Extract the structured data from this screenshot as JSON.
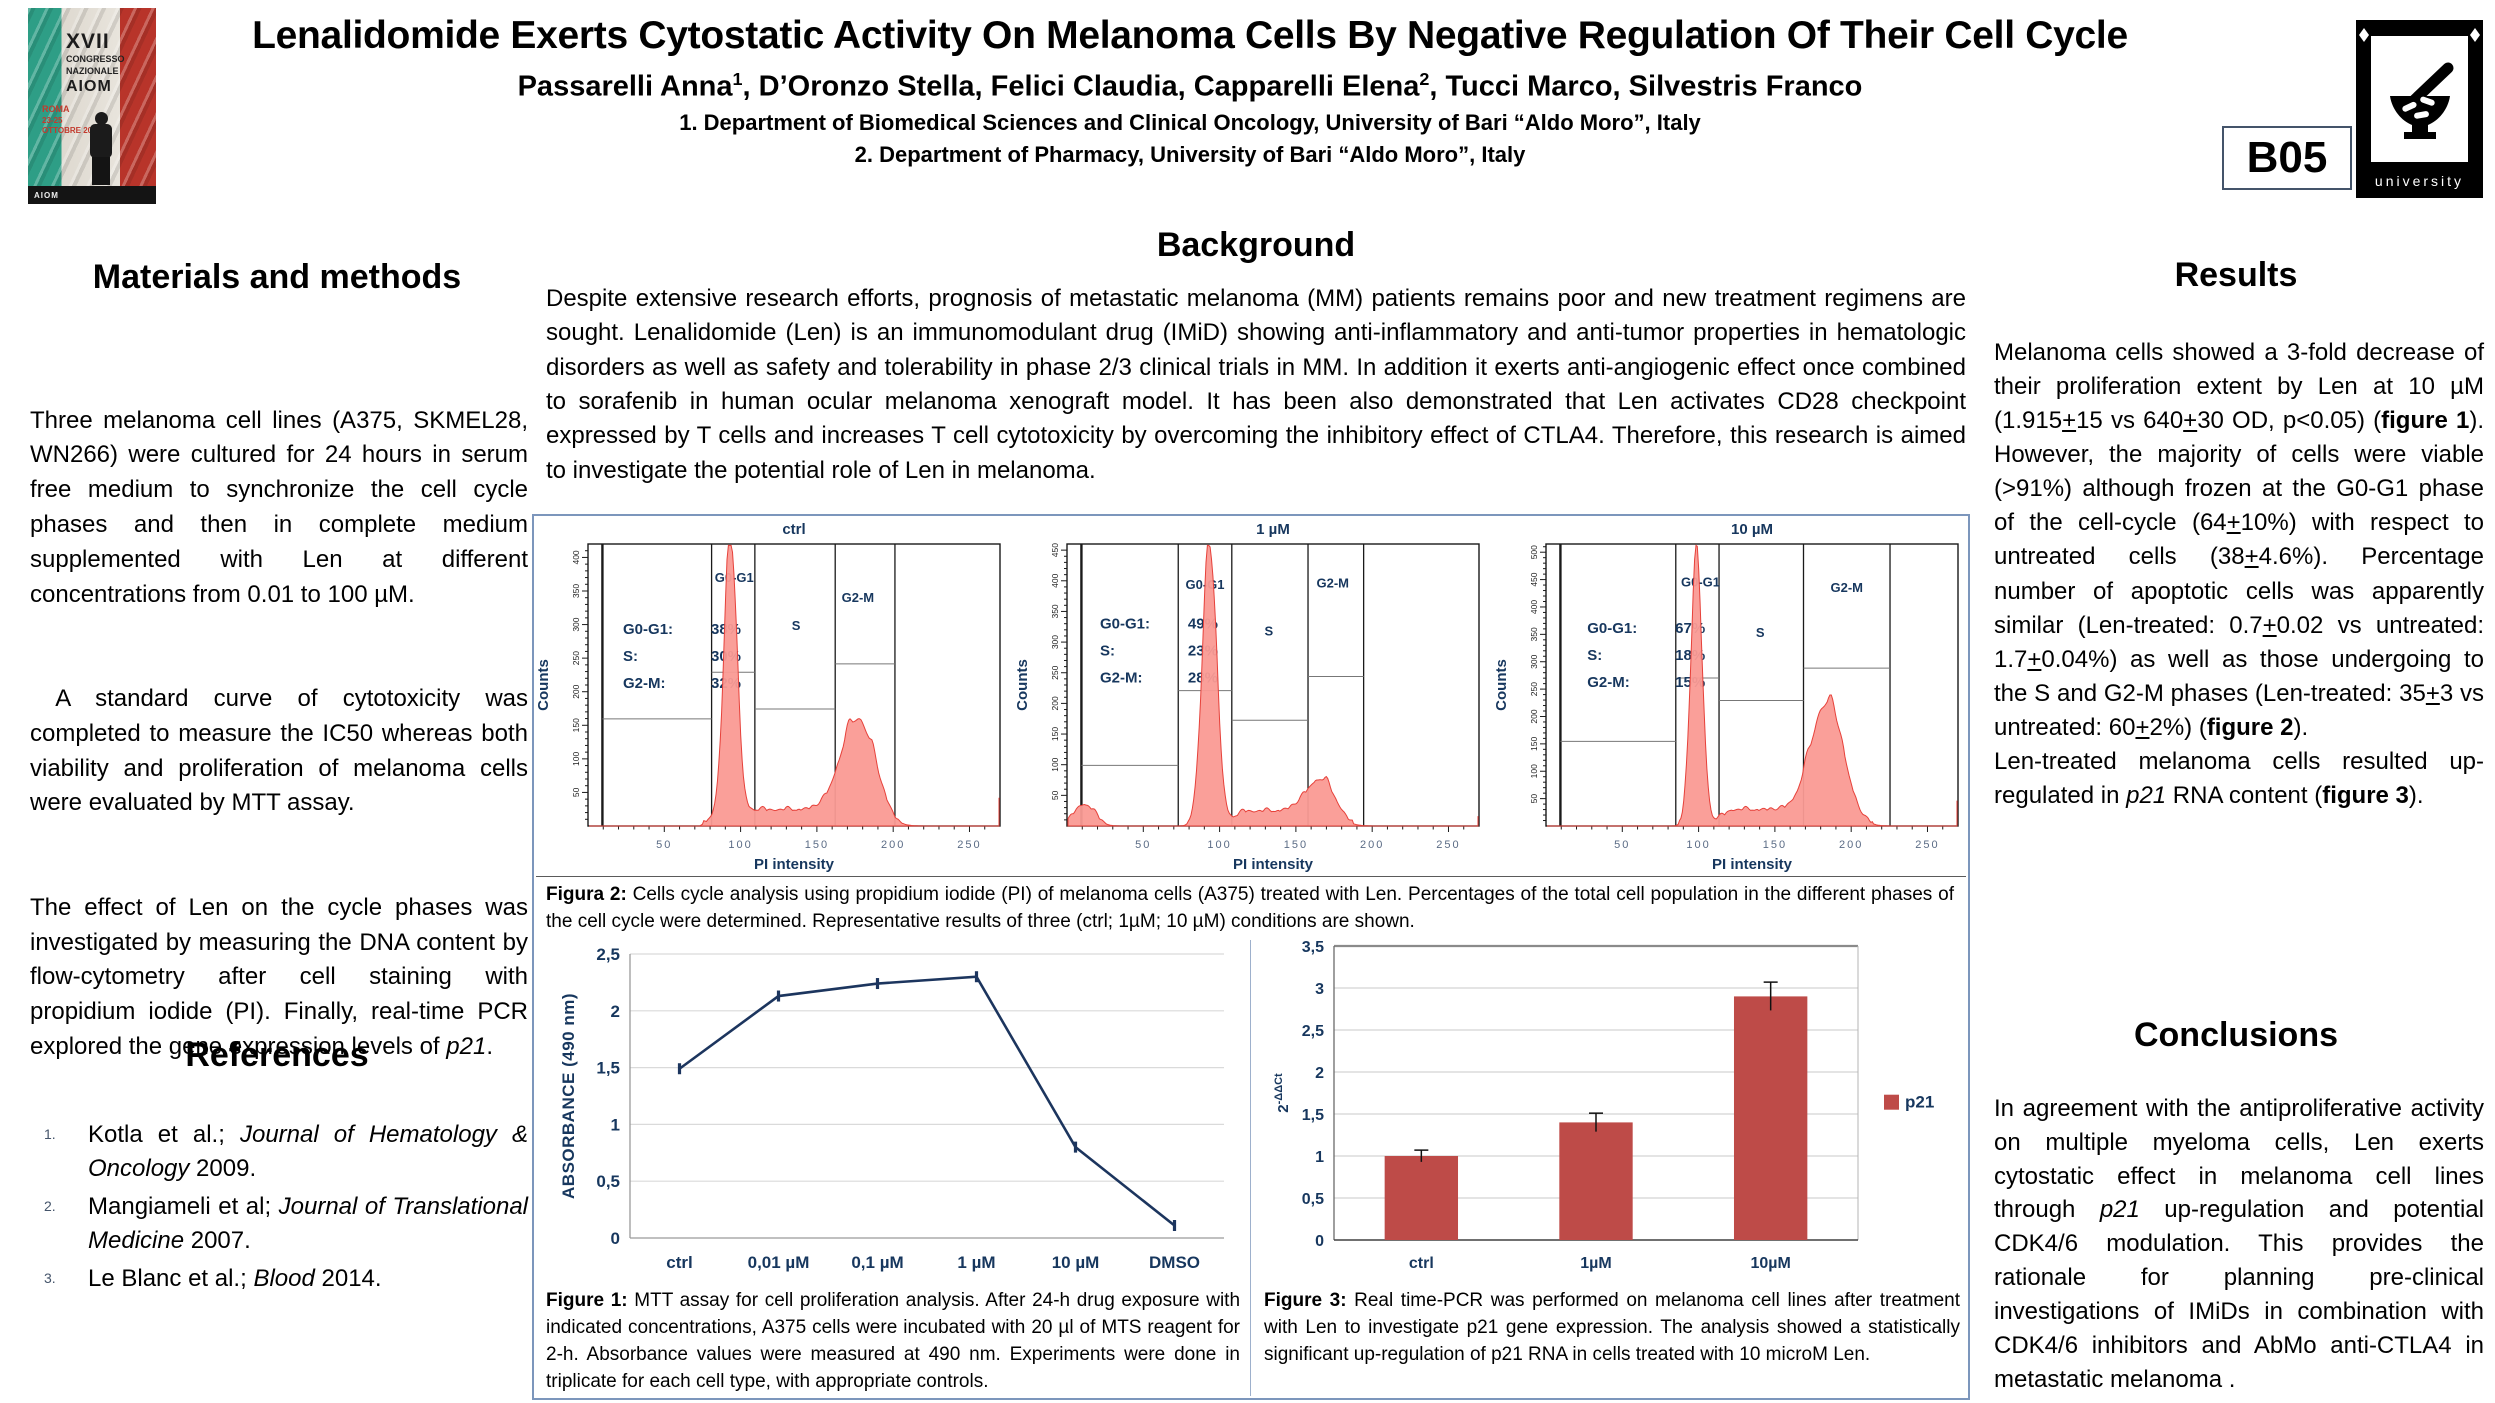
{
  "header": {
    "title": "Lenalidomide Exerts Cytostatic Activity On Melanoma Cells By Negative Regulation Of Their Cell Cycle",
    "authors_segments": [
      {
        "t": "Passarelli Anna"
      },
      {
        "t": "1",
        "s": 1
      },
      {
        "t": ", D’Oronzo Stella, Felici Claudia, Capparelli Elena"
      },
      {
        "t": "2",
        "s": 1
      },
      {
        "t": ", Tucci Marco, Silvestris Franco"
      }
    ],
    "affiliation1": "1. Department of Biomedical Sciences and Clinical Oncology, University of Bari “Aldo Moro”, Italy",
    "affiliation2": "2. Department of Pharmacy, University of Bari “Aldo Moro”, Italy",
    "badge": "B05",
    "university_logo_text": "university",
    "congress_logo": {
      "l1": "XVII",
      "l2": "CONGRESSO",
      "l3": "NAZIONALE",
      "l4": "AIOM",
      "l5": "ROMA",
      "l6": "23-25 OTTOBRE 2015",
      "band": "AIOM"
    }
  },
  "left": {
    "methods_title": "Materials and methods",
    "p1": "Three melanoma cell lines (A375, SKMEL28, WN266) were cultured for 24 hours in serum free medium to synchronize the cell cycle phases and then in complete medium supplemented with Len at different concentrations from 0.01 to 100 µM.",
    "p2": " A standard curve of cytotoxicity was completed to measure the IC50 whereas both viability and proliferation of melanoma cells were evaluated by MTT assay.",
    "p3_segments": [
      {
        "t": "The effect of Len on the cycle phases was investigated by measuring the DNA content by flow-cytometry after cell staining with propidium iodide (PI). Finally, real-time PCR explored the gene expression levels of "
      },
      {
        "t": "p21",
        "i": 1
      },
      {
        "t": "."
      }
    ],
    "references_title": "References",
    "references": [
      {
        "num": "1.",
        "segments": [
          {
            "t": "Kotla et al.; "
          },
          {
            "t": "Journal of Hematology & Oncology",
            "i": 1
          },
          {
            "t": " 2009."
          }
        ]
      },
      {
        "num": "2.",
        "segments": [
          {
            "t": "Mangiameli et al; "
          },
          {
            "t": "Journal of Translational Medicine",
            "i": 1
          },
          {
            "t": " 2007."
          }
        ]
      },
      {
        "num": "3.",
        "segments": [
          {
            "t": "Le Blanc et al.; "
          },
          {
            "t": "Blood",
            "i": 1
          },
          {
            "t": " 2014."
          }
        ]
      }
    ]
  },
  "background": {
    "title": "Background",
    "text": "Despite extensive research efforts, prognosis of metastatic melanoma (MM) patients remains poor and new treatment regimens are sought. Lenalidomide (Len) is an immunomodulant drug (IMiD) showing anti-inflammatory and anti-tumor properties in hematologic disorders as well as safety and tolerability in phase 2/3 clinical trials in MM. In addition it exerts anti-angiogenic effect once combined to sorafenib in human ocular melanoma xenograft model. It has been also demonstrated that Len activates CD28 checkpoint expressed by T cells and increases T cell cytotoxicity by overcoming the inhibitory effect of CTLA4. Therefore, this research is aimed to investigate the potential role of Len in melanoma."
  },
  "results": {
    "title": "Results",
    "segments": [
      {
        "t": "Melanoma cells showed a 3-fold decrease of their proliferation extent by Len at 10 µM (1.915"
      },
      {
        "t": "+",
        "u": 1
      },
      {
        "t": "15 vs 640"
      },
      {
        "t": "+",
        "u": 1
      },
      {
        "t": "30 OD, p<0.05) ("
      },
      {
        "t": "figure 1",
        "b": 1
      },
      {
        "t": "). However, the majority of cells were viable (>91%) although frozen at the G0-G1 phase of the cell-cycle (64"
      },
      {
        "t": "+",
        "u": 1
      },
      {
        "t": "10%) with respect to untreated cells (38"
      },
      {
        "t": "+",
        "u": 1
      },
      {
        "t": "4.6%). Percentage number of apoptotic cells was apparently similar (Len-treated: 0.7"
      },
      {
        "t": "+",
        "u": 1
      },
      {
        "t": "0.02 vs untreated: 1.7"
      },
      {
        "t": "+",
        "u": 1
      },
      {
        "t": "0.04%) as well as those undergoing to the S and G2-M phases (Len-treated: 35"
      },
      {
        "t": "+",
        "u": 1
      },
      {
        "t": "3 vs untreated: 60"
      },
      {
        "t": "+",
        "u": 1
      },
      {
        "t": "2%) ("
      },
      {
        "t": "figure 2",
        "b": 1
      },
      {
        "t": ").\nLen-treated melanoma cells resulted up-regulated in "
      },
      {
        "t": "p21",
        "i": 1
      },
      {
        "t": " RNA content ("
      },
      {
        "t": "figure 3",
        "b": 1
      },
      {
        "t": ")."
      }
    ]
  },
  "conclusions": {
    "title": "Conclusions",
    "segments": [
      {
        "t": "In agreement with the antiproliferative activity on multiple myeloma cells, Len exerts cytostatic effect in melanoma cell lines through "
      },
      {
        "t": "p21",
        "i": 1
      },
      {
        "t": " up-regulation and potential CDK4/6 modulation. This provides the rationale for planning pre-clinical investigations of IMiDs in combination with CDK4/6 inhibitors and AbMo anti-CTLA4 in metastatic melanoma ."
      }
    ]
  },
  "captions": {
    "fig2": [
      {
        "t": "Figura 2:",
        "b": 1
      },
      {
        "t": " Cells cycle analysis using propidium iodide (PI) of melanoma cells (A375) treated with Len. Percentages of the total cell population in the different phases of the cell cycle were determined. Representative results of three (ctrl; 1µM; 10 µM) conditions are shown."
      }
    ],
    "fig1": [
      {
        "t": "Figure 1:",
        "b": 1
      },
      {
        "t": " MTT assay for cell proliferation analysis. After 24-h drug exposure with indicated concentrations, A375 cells were incubated with 20 µl of MTS reagent for 2-h. Absorbance values were measured at 490 nm. Experiments were done in triplicate for each cell type, with appropriate controls."
      }
    ],
    "fig3": [
      {
        "t": "Figure 3:",
        "b": 1
      },
      {
        "t": " Real time-PCR was performed on melanoma cell lines after treatment with Len to investigate p21 gene expression. The analysis showed a statistically significant up-regulation of p21 RNA in cells treated with 10 microM Len."
      }
    ]
  },
  "chart_data": {
    "flow": {
      "type": "histogram",
      "xlabel": "PI intensity",
      "ylabel": "Counts",
      "fill": "#FA9A94",
      "stroke": "#E6413A",
      "text_color": "#17375E",
      "panels": [
        {
          "title": "ctrl",
          "ymax": 420,
          "xmax": 270,
          "xmajors": [
            50,
            100,
            150,
            200,
            250
          ],
          "stats_lines": [
            [
              "G0-G1:",
              "38%"
            ],
            [
              "S:",
              "30%"
            ],
            [
              "G2-M:",
              "32%"
            ]
          ],
          "stats_pos": [
            0.085,
            0.32
          ],
          "verticals": [
            0.035,
            0.3,
            0.405,
            0.6,
            0.745
          ],
          "brackets": [
            [
              0.035,
              0.3,
              0.62
            ],
            [
              0.3,
              0.405,
              0.455
            ],
            [
              0.405,
              0.6,
              0.585
            ],
            [
              0.6,
              0.745,
              0.425
            ]
          ],
          "region_labels": [
            {
              "t": "G0-G1",
              "x": 0.355,
              "y": 0.135
            },
            {
              "t": "S",
              "x": 0.505,
              "y": 0.305
            },
            {
              "t": "G2-M",
              "x": 0.655,
              "y": 0.205
            }
          ],
          "peaks": [
            {
              "c": 0.345,
              "w": 0.022,
              "h": 0.97
            },
            {
              "c": 0.655,
              "w": 0.058,
              "h": 0.33
            }
          ],
          "plateau": {
            "x1": 0.3,
            "x2": 0.72,
            "h": 0.055
          },
          "spike": 0.1
        },
        {
          "title": "1 µM",
          "ymax": 460,
          "xmax": 270,
          "xmajors": [
            50,
            100,
            150,
            200,
            250
          ],
          "stats_lines": [
            [
              "G0-G1:",
              "49%"
            ],
            [
              "S:",
              "23%"
            ],
            [
              "G2-M:",
              "28%"
            ]
          ],
          "stats_pos": [
            0.08,
            0.3
          ],
          "verticals": [
            0.035,
            0.27,
            0.4,
            0.585,
            0.72
          ],
          "brackets": [
            [
              0.035,
              0.27,
              0.785
            ],
            [
              0.27,
              0.4,
              0.52
            ],
            [
              0.4,
              0.585,
              0.625
            ],
            [
              0.585,
              0.72,
              0.47
            ]
          ],
          "region_labels": [
            {
              "t": "G0-G1",
              "x": 0.335,
              "y": 0.16
            },
            {
              "t": "S",
              "x": 0.49,
              "y": 0.325
            },
            {
              "t": "G2-M",
              "x": 0.645,
              "y": 0.155
            }
          ],
          "peaks": [
            {
              "c": 0.345,
              "w": 0.025,
              "h": 0.99
            },
            {
              "c": 0.04,
              "w": 0.035,
              "h": 0.075
            },
            {
              "c": 0.615,
              "w": 0.05,
              "h": 0.115
            }
          ],
          "plateau": {
            "x1": 0.4,
            "x2": 0.66,
            "h": 0.05
          },
          "spike": 0.035
        },
        {
          "title": "10 µM",
          "ymax": 515,
          "xmax": 270,
          "xmajors": [
            50,
            100,
            150,
            200,
            250
          ],
          "stats_lines": [
            [
              "G0-G1:",
              "67%"
            ],
            [
              "S:",
              "18%"
            ],
            [
              "G2-M:",
              "15%"
            ]
          ],
          "stats_pos": [
            0.1,
            0.315
          ],
          "verticals": [
            0.035,
            0.315,
            0.42,
            0.625,
            0.835
          ],
          "brackets": [
            [
              0.035,
              0.315,
              0.7
            ],
            [
              0.315,
              0.42,
              0.475
            ],
            [
              0.42,
              0.625,
              0.555
            ],
            [
              0.625,
              0.835,
              0.44
            ]
          ],
          "region_labels": [
            {
              "t": "G0-G1",
              "x": 0.375,
              "y": 0.15
            },
            {
              "t": "S",
              "x": 0.52,
              "y": 0.33
            },
            {
              "t": "G2-M",
              "x": 0.73,
              "y": 0.17
            }
          ],
          "peaks": [
            {
              "c": 0.365,
              "w": 0.02,
              "h": 0.97
            },
            {
              "c": 0.685,
              "w": 0.055,
              "h": 0.44
            }
          ],
          "plateau": {
            "x1": 0.42,
            "x2": 0.66,
            "h": 0.055
          },
          "spike": 0.09
        }
      ]
    },
    "figure1": {
      "type": "line",
      "categories": [
        "ctrl",
        "0,01 µM",
        "0,1 µM",
        "1 µM",
        "10 µM",
        "DMSO"
      ],
      "values": [
        1.49,
        2.13,
        2.24,
        2.3,
        0.8,
        0.11
      ],
      "ymax": 2.5,
      "yticks": [
        "0",
        "0,5",
        "1",
        "1,5",
        "2",
        "2,5"
      ],
      "ylabel": "ABSORBANCE (490 nm)",
      "line_color": "#1C355E",
      "grid": true
    },
    "figure3": {
      "type": "bar",
      "categories": [
        "ctrl",
        "1µM",
        "10µM"
      ],
      "values": [
        1.0,
        1.4,
        2.9
      ],
      "errors": [
        0.07,
        0.11,
        0.17
      ],
      "ymax": 3.5,
      "yticks": [
        "0",
        "0,5",
        "1",
        "1,5",
        "2",
        "2,5",
        "3",
        "3,5"
      ],
      "ylabel_base": "2",
      "ylabel_sup": "-ΔΔCt",
      "legend": "p21",
      "bar_color": "#BE4B48",
      "grid": true
    }
  }
}
